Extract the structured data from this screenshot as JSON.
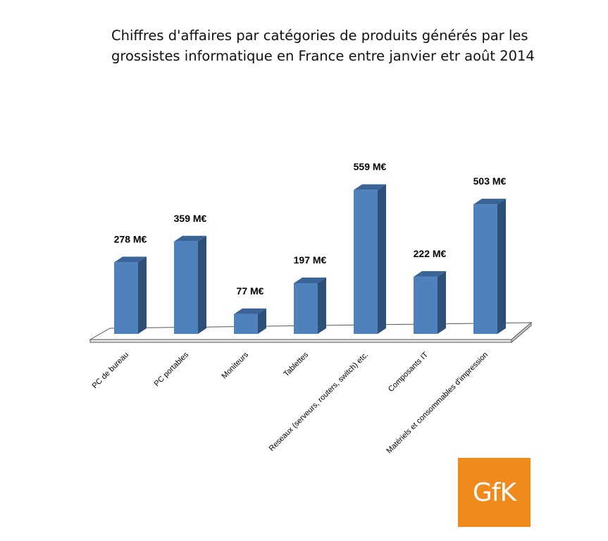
{
  "logo_text": "GfK",
  "colors": {
    "bar_front": "#4f81bd",
    "bar_side": "#2e4f78",
    "bar_top": "#3a6397",
    "floor": "#ffffff",
    "logo": "#f08a1c"
  },
  "chart_data": {
    "type": "bar",
    "title": "Chiffres d'affaires par catégories de produits générés par les grossistes informatique en France entre janvier etr août 2014",
    "unit": "M€",
    "categories": [
      "PC de bureau",
      "PC portables",
      "Moniteurs",
      "Tablettes",
      "Reseaux (serveurs, routers, switch) etc.",
      "Composants IT",
      "Matériels et consommables d'impression"
    ],
    "values": [
      278,
      359,
      77,
      197,
      559,
      222,
      503
    ],
    "data_labels": [
      "278 M€",
      "359 M€",
      "77 M€",
      "197 M€",
      "559 M€",
      "222 M€",
      "503 M€"
    ],
    "ylim": [
      0,
      600
    ],
    "grid": false,
    "style": "3d-column"
  }
}
